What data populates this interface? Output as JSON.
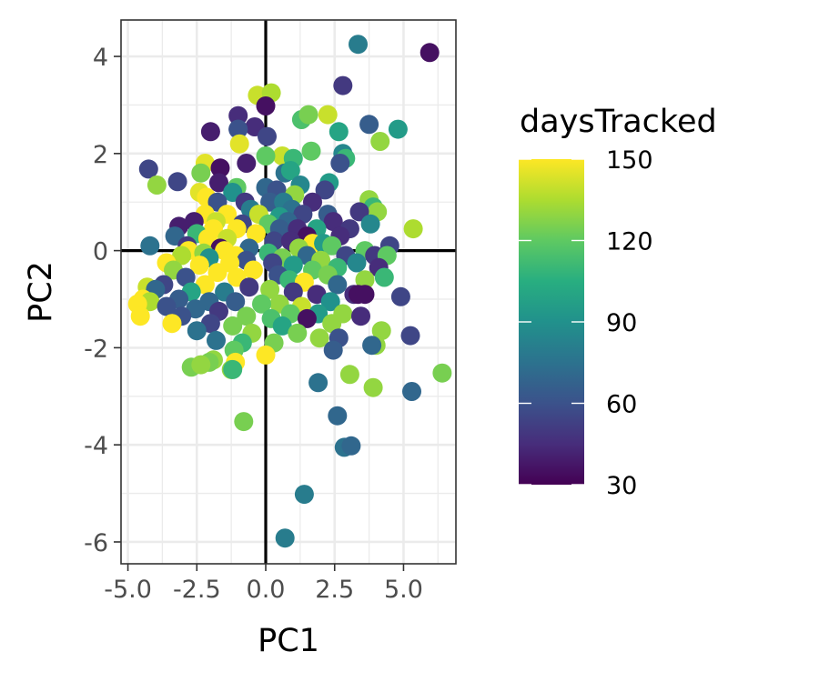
{
  "chart_data": {
    "type": "scatter",
    "xlabel": "PC1",
    "ylabel": "PC2",
    "xlim": [
      -5.25,
      6.9
    ],
    "ylim": [
      -6.45,
      4.75
    ],
    "x_ticks": [
      -5.0,
      -2.5,
      0.0,
      2.5,
      5.0
    ],
    "x_tick_labels": [
      "-5.0",
      "-2.5",
      "0.0",
      "2.5",
      "5.0"
    ],
    "y_ticks": [
      -6,
      -4,
      -2,
      0,
      2,
      4
    ],
    "y_tick_labels": [
      "-6",
      "-4",
      "-2",
      "0",
      "2",
      "4"
    ],
    "reference_lines": {
      "x": 0,
      "y": 0
    },
    "grid": true,
    "legend": {
      "title": "daysTracked",
      "placement": "right",
      "min": 30,
      "max": 150,
      "breaks": [
        30,
        60,
        90,
        120,
        150
      ],
      "break_labels": [
        "30",
        "60",
        "90",
        "120",
        "150"
      ],
      "palette": [
        "#440154",
        "#472d7b",
        "#3b528b",
        "#2c728e",
        "#21918c",
        "#28ae80",
        "#5ec962",
        "#addc30",
        "#fde725"
      ]
    },
    "points": [
      {
        "x": 5.95,
        "y": 4.08,
        "c": 35
      },
      {
        "x": 3.35,
        "y": 4.25,
        "c": 80
      },
      {
        "x": 2.8,
        "y": 3.4,
        "c": 50
      },
      {
        "x": -0.3,
        "y": 3.2,
        "c": 140
      },
      {
        "x": 0.2,
        "y": 3.25,
        "c": 135
      },
      {
        "x": 0.0,
        "y": 2.98,
        "c": 35
      },
      {
        "x": -1.0,
        "y": 2.78,
        "c": 45
      },
      {
        "x": 1.3,
        "y": 2.7,
        "c": 115
      },
      {
        "x": 1.55,
        "y": 2.8,
        "c": 125
      },
      {
        "x": 2.25,
        "y": 2.8,
        "c": 140
      },
      {
        "x": 3.75,
        "y": 2.6,
        "c": 65
      },
      {
        "x": -0.4,
        "y": 2.55,
        "c": 45
      },
      {
        "x": 4.8,
        "y": 2.5,
        "c": 95
      },
      {
        "x": -1.0,
        "y": 2.5,
        "c": 60
      },
      {
        "x": -1.0,
        "y": 2.5,
        "c": 60
      },
      {
        "x": 2.65,
        "y": 2.45,
        "c": 100
      },
      {
        "x": -2.0,
        "y": 2.45,
        "c": 40
      },
      {
        "x": 0.05,
        "y": 2.35,
        "c": 55
      },
      {
        "x": 4.15,
        "y": 2.25,
        "c": 130
      },
      {
        "x": -0.95,
        "y": 2.2,
        "c": 145
      },
      {
        "x": 1.65,
        "y": 2.05,
        "c": 120
      },
      {
        "x": 2.8,
        "y": 2.0,
        "c": 85
      },
      {
        "x": 2.9,
        "y": 1.9,
        "c": 110
      },
      {
        "x": 0.6,
        "y": 1.95,
        "c": 140
      },
      {
        "x": 0.0,
        "y": 1.95,
        "c": 120
      },
      {
        "x": 1.0,
        "y": 1.9,
        "c": 110
      },
      {
        "x": -2.2,
        "y": 1.8,
        "c": 145
      },
      {
        "x": -0.7,
        "y": 1.8,
        "c": 40
      },
      {
        "x": 2.7,
        "y": 1.8,
        "c": 60
      },
      {
        "x": -4.25,
        "y": 1.68,
        "c": 55
      },
      {
        "x": -1.65,
        "y": 1.7,
        "c": 35
      },
      {
        "x": -2.35,
        "y": 1.6,
        "c": 125
      },
      {
        "x": 0.7,
        "y": 1.6,
        "c": 75
      },
      {
        "x": 0.9,
        "y": 1.65,
        "c": 100
      },
      {
        "x": -3.2,
        "y": 1.42,
        "c": 55
      },
      {
        "x": -3.95,
        "y": 1.35,
        "c": 130
      },
      {
        "x": 2.3,
        "y": 1.4,
        "c": 95
      },
      {
        "x": -1.7,
        "y": 1.4,
        "c": 40
      },
      {
        "x": -1.05,
        "y": 1.3,
        "c": 120
      },
      {
        "x": 1.25,
        "y": 1.35,
        "c": 85
      },
      {
        "x": 0.0,
        "y": 1.3,
        "c": 70
      },
      {
        "x": -2.4,
        "y": 1.2,
        "c": 145
      },
      {
        "x": -2.15,
        "y": 1.1,
        "c": 150
      },
      {
        "x": -1.2,
        "y": 1.2,
        "c": 90
      },
      {
        "x": 0.4,
        "y": 1.25,
        "c": 60
      },
      {
        "x": 1.05,
        "y": 1.15,
        "c": 130
      },
      {
        "x": 2.15,
        "y": 1.25,
        "c": 55
      },
      {
        "x": 3.75,
        "y": 1.05,
        "c": 130
      },
      {
        "x": -1.75,
        "y": 1.0,
        "c": 60
      },
      {
        "x": -0.75,
        "y": 1.0,
        "c": 50
      },
      {
        "x": 0.15,
        "y": 1.0,
        "c": 65
      },
      {
        "x": 0.65,
        "y": 1.0,
        "c": 80
      },
      {
        "x": 1.7,
        "y": 1.0,
        "c": 45
      },
      {
        "x": 3.9,
        "y": 0.9,
        "c": 110
      },
      {
        "x": -0.55,
        "y": 0.85,
        "c": 80
      },
      {
        "x": 0.95,
        "y": 0.85,
        "c": 75
      },
      {
        "x": 4.05,
        "y": 0.8,
        "c": 130
      },
      {
        "x": 3.4,
        "y": 0.8,
        "c": 50
      },
      {
        "x": -2.2,
        "y": 0.75,
        "c": 150
      },
      {
        "x": -1.4,
        "y": 0.75,
        "c": 150
      },
      {
        "x": -0.25,
        "y": 0.75,
        "c": 140
      },
      {
        "x": 0.5,
        "y": 0.7,
        "c": 95
      },
      {
        "x": 1.35,
        "y": 0.75,
        "c": 55
      },
      {
        "x": 2.25,
        "y": 0.75,
        "c": 65
      },
      {
        "x": -2.6,
        "y": 0.6,
        "c": 40
      },
      {
        "x": -1.8,
        "y": 0.6,
        "c": 140
      },
      {
        "x": -0.85,
        "y": 0.55,
        "c": 55
      },
      {
        "x": 0.1,
        "y": 0.55,
        "c": 120
      },
      {
        "x": 0.8,
        "y": 0.6,
        "c": 70
      },
      {
        "x": 2.45,
        "y": 0.6,
        "c": 45
      },
      {
        "x": 3.8,
        "y": 0.55,
        "c": 85
      },
      {
        "x": -3.15,
        "y": 0.5,
        "c": 40
      },
      {
        "x": -1.9,
        "y": 0.45,
        "c": 150
      },
      {
        "x": -1.05,
        "y": 0.45,
        "c": 150
      },
      {
        "x": 0.5,
        "y": 0.45,
        "c": 65
      },
      {
        "x": 1.15,
        "y": 0.45,
        "c": 45
      },
      {
        "x": 1.85,
        "y": 0.45,
        "c": 100
      },
      {
        "x": 3.05,
        "y": 0.45,
        "c": 50
      },
      {
        "x": 5.35,
        "y": 0.45,
        "c": 135
      },
      {
        "x": -2.5,
        "y": 0.35,
        "c": 110
      },
      {
        "x": -0.35,
        "y": 0.35,
        "c": 150
      },
      {
        "x": 1.5,
        "y": 0.3,
        "c": 35
      },
      {
        "x": 2.7,
        "y": 0.3,
        "c": 45
      },
      {
        "x": -3.3,
        "y": 0.3,
        "c": 70
      },
      {
        "x": -2.1,
        "y": 0.25,
        "c": 150
      },
      {
        "x": -1.4,
        "y": 0.25,
        "c": 140
      },
      {
        "x": 0.3,
        "y": 0.2,
        "c": 55
      },
      {
        "x": 0.9,
        "y": 0.2,
        "c": 45
      },
      {
        "x": 1.7,
        "y": 0.15,
        "c": 150
      },
      {
        "x": 2.1,
        "y": 0.15,
        "c": 95
      },
      {
        "x": -4.2,
        "y": 0.1,
        "c": 75
      },
      {
        "x": -2.85,
        "y": 0.1,
        "c": 50
      },
      {
        "x": 4.5,
        "y": 0.1,
        "c": 55
      },
      {
        "x": 2.4,
        "y": 0.1,
        "c": 120
      },
      {
        "x": -1.65,
        "y": 0.05,
        "c": 35
      },
      {
        "x": -0.6,
        "y": 0.05,
        "c": 70
      },
      {
        "x": 1.2,
        "y": 0.05,
        "c": 130
      },
      {
        "x": 3.6,
        "y": 0.0,
        "c": 120
      },
      {
        "x": -1.5,
        "y": 0.0,
        "c": 150
      },
      {
        "x": -2.8,
        "y": 0.0,
        "c": 150
      },
      {
        "x": -2.25,
        "y": -0.05,
        "c": 130
      },
      {
        "x": 0.1,
        "y": -0.05,
        "c": 110
      },
      {
        "x": 2.9,
        "y": -0.1,
        "c": 55
      },
      {
        "x": 3.95,
        "y": -0.1,
        "c": 50
      },
      {
        "x": -3.05,
        "y": -0.1,
        "c": 135
      },
      {
        "x": 1.5,
        "y": -0.1,
        "c": 70
      },
      {
        "x": -1.1,
        "y": -0.1,
        "c": 150
      },
      {
        "x": 4.4,
        "y": -0.1,
        "c": 120
      },
      {
        "x": -2.05,
        "y": -0.15,
        "c": 90
      },
      {
        "x": 0.6,
        "y": -0.15,
        "c": 125
      },
      {
        "x": 2.0,
        "y": -0.2,
        "c": 130
      },
      {
        "x": -0.7,
        "y": -0.2,
        "c": 60
      },
      {
        "x": -3.6,
        "y": -0.25,
        "c": 150
      },
      {
        "x": -1.3,
        "y": -0.25,
        "c": 150
      },
      {
        "x": 0.25,
        "y": -0.25,
        "c": 55
      },
      {
        "x": 3.3,
        "y": -0.25,
        "c": 85
      },
      {
        "x": 1.0,
        "y": -0.3,
        "c": 95
      },
      {
        "x": -2.4,
        "y": -0.3,
        "c": 150
      },
      {
        "x": 2.6,
        "y": -0.35,
        "c": 110
      },
      {
        "x": 4.1,
        "y": -0.35,
        "c": 45
      },
      {
        "x": -0.45,
        "y": -0.4,
        "c": 150
      },
      {
        "x": 1.7,
        "y": -0.4,
        "c": 120
      },
      {
        "x": -3.35,
        "y": -0.4,
        "c": 130
      },
      {
        "x": -1.75,
        "y": -0.45,
        "c": 150
      },
      {
        "x": 0.45,
        "y": -0.5,
        "c": 60
      },
      {
        "x": 2.25,
        "y": -0.5,
        "c": 125
      },
      {
        "x": -2.9,
        "y": -0.55,
        "c": 60
      },
      {
        "x": -1.05,
        "y": -0.55,
        "c": 150
      },
      {
        "x": 0.85,
        "y": -0.6,
        "c": 110
      },
      {
        "x": 3.6,
        "y": -0.6,
        "c": 130
      },
      {
        "x": 4.3,
        "y": -0.55,
        "c": 110
      },
      {
        "x": 1.4,
        "y": -0.65,
        "c": 150
      },
      {
        "x": 2.6,
        "y": -0.7,
        "c": 70
      },
      {
        "x": -3.7,
        "y": -0.7,
        "c": 55
      },
      {
        "x": -2.2,
        "y": -0.7,
        "c": 150
      },
      {
        "x": -0.6,
        "y": -0.75,
        "c": 50
      },
      {
        "x": 0.15,
        "y": -0.8,
        "c": 130
      },
      {
        "x": -4.3,
        "y": -0.75,
        "c": 140
      },
      {
        "x": -4.0,
        "y": -0.8,
        "c": 70
      },
      {
        "x": -2.7,
        "y": -0.85,
        "c": 100
      },
      {
        "x": -1.5,
        "y": -0.85,
        "c": 80
      },
      {
        "x": 1.0,
        "y": -0.85,
        "c": 50
      },
      {
        "x": 1.85,
        "y": -0.9,
        "c": 45
      },
      {
        "x": 3.2,
        "y": -0.9,
        "c": 45
      },
      {
        "x": 3.35,
        "y": -0.9,
        "c": 35
      },
      {
        "x": 3.6,
        "y": -0.9,
        "c": 35
      },
      {
        "x": 4.9,
        "y": -0.95,
        "c": 55
      },
      {
        "x": -4.45,
        "y": -1.0,
        "c": 150
      },
      {
        "x": -4.2,
        "y": -1.05,
        "c": 135
      },
      {
        "x": -3.15,
        "y": -1.0,
        "c": 65
      },
      {
        "x": -2.05,
        "y": -1.05,
        "c": 70
      },
      {
        "x": -1.1,
        "y": -1.05,
        "c": 65
      },
      {
        "x": 0.5,
        "y": -1.1,
        "c": 130
      },
      {
        "x": 2.35,
        "y": -1.05,
        "c": 90
      },
      {
        "x": -0.15,
        "y": -1.1,
        "c": 120
      },
      {
        "x": 1.3,
        "y": -1.15,
        "c": 140
      },
      {
        "x": -4.65,
        "y": -1.1,
        "c": 150
      },
      {
        "x": -3.6,
        "y": -1.15,
        "c": 60
      },
      {
        "x": -2.55,
        "y": -1.2,
        "c": 70
      },
      {
        "x": -1.7,
        "y": -1.25,
        "c": 50
      },
      {
        "x": 0.9,
        "y": -1.3,
        "c": 120
      },
      {
        "x": 1.9,
        "y": -1.3,
        "c": 95
      },
      {
        "x": 2.8,
        "y": -1.3,
        "c": 130
      },
      {
        "x": -4.55,
        "y": -1.35,
        "c": 150
      },
      {
        "x": -3.05,
        "y": -1.35,
        "c": 60
      },
      {
        "x": -0.7,
        "y": -1.35,
        "c": 125
      },
      {
        "x": 0.2,
        "y": -1.4,
        "c": 115
      },
      {
        "x": 1.5,
        "y": -1.4,
        "c": 35
      },
      {
        "x": 3.45,
        "y": -1.35,
        "c": 45
      },
      {
        "x": -3.4,
        "y": -1.5,
        "c": 150
      },
      {
        "x": -2.0,
        "y": -1.5,
        "c": 55
      },
      {
        "x": -1.2,
        "y": -1.55,
        "c": 125
      },
      {
        "x": 0.6,
        "y": -1.55,
        "c": 100
      },
      {
        "x": 2.4,
        "y": -1.5,
        "c": 130
      },
      {
        "x": -2.5,
        "y": -1.65,
        "c": 75
      },
      {
        "x": -0.5,
        "y": -1.7,
        "c": 130
      },
      {
        "x": 1.15,
        "y": -1.7,
        "c": 125
      },
      {
        "x": 4.2,
        "y": -1.65,
        "c": 130
      },
      {
        "x": 5.25,
        "y": -1.75,
        "c": 55
      },
      {
        "x": 1.95,
        "y": -1.8,
        "c": 130
      },
      {
        "x": 2.65,
        "y": -1.8,
        "c": 60
      },
      {
        "x": -1.8,
        "y": -1.85,
        "c": 75
      },
      {
        "x": -0.85,
        "y": -1.9,
        "c": 110
      },
      {
        "x": 0.3,
        "y": -1.9,
        "c": 125
      },
      {
        "x": 4.0,
        "y": -1.95,
        "c": 130
      },
      {
        "x": 3.85,
        "y": -1.95,
        "c": 70
      },
      {
        "x": -1.15,
        "y": -2.05,
        "c": 120
      },
      {
        "x": 2.45,
        "y": -2.05,
        "c": 65
      },
      {
        "x": 0.0,
        "y": -2.15,
        "c": 150
      },
      {
        "x": -1.9,
        "y": -2.25,
        "c": 130
      },
      {
        "x": -2.05,
        "y": -2.3,
        "c": 125
      },
      {
        "x": -1.1,
        "y": -2.3,
        "c": 150
      },
      {
        "x": -2.7,
        "y": -2.4,
        "c": 125
      },
      {
        "x": -2.35,
        "y": -2.35,
        "c": 130
      },
      {
        "x": -1.25,
        "y": -2.45,
        "c": 130
      },
      {
        "x": -1.2,
        "y": -2.45,
        "c": 110
      },
      {
        "x": 6.4,
        "y": -2.52,
        "c": 125
      },
      {
        "x": 3.05,
        "y": -2.55,
        "c": 130
      },
      {
        "x": 1.9,
        "y": -2.72,
        "c": 75
      },
      {
        "x": 3.9,
        "y": -2.82,
        "c": 130
      },
      {
        "x": 5.3,
        "y": -2.9,
        "c": 70
      },
      {
        "x": -0.8,
        "y": -3.52,
        "c": 125
      },
      {
        "x": 2.6,
        "y": -3.4,
        "c": 70
      },
      {
        "x": 2.85,
        "y": -4.05,
        "c": 75
      },
      {
        "x": 3.1,
        "y": -4.02,
        "c": 70
      },
      {
        "x": 1.4,
        "y": -5.02,
        "c": 80
      },
      {
        "x": 0.7,
        "y": -5.92,
        "c": 80
      }
    ]
  }
}
